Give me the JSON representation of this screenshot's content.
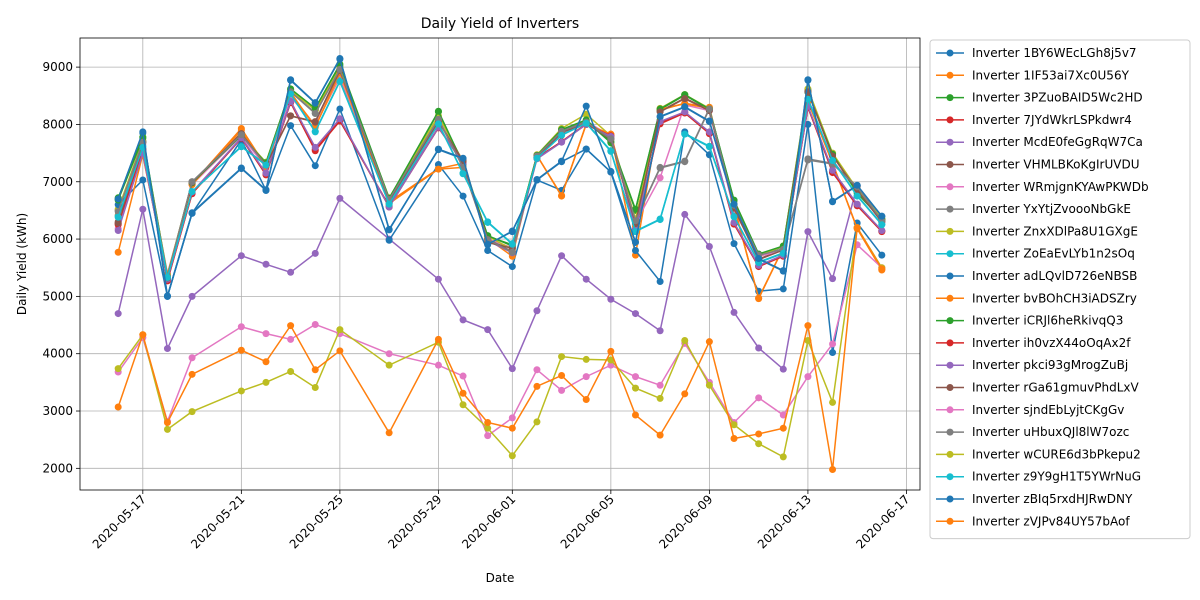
{
  "chart_data": {
    "type": "line",
    "title": "Daily Yield of Inverters",
    "x_label": "Date",
    "y_label": "Daily Yield (kWh)",
    "x": [
      "2020-05-16",
      "2020-05-17",
      "2020-05-18",
      "2020-05-19",
      "2020-05-21",
      "2020-05-22",
      "2020-05-23",
      "2020-05-24",
      "2020-05-25",
      "2020-05-27",
      "2020-05-29",
      "2020-05-30",
      "2020-05-31",
      "2020-06-01",
      "2020-06-02",
      "2020-06-03",
      "2020-06-04",
      "2020-06-05",
      "2020-06-06",
      "2020-06-07",
      "2020-06-08",
      "2020-06-09",
      "2020-06-10",
      "2020-06-11",
      "2020-06-12",
      "2020-06-13",
      "2020-06-14",
      "2020-06-15",
      "2020-06-16"
    ],
    "xlim": [
      "2020-05-14T10:48Z",
      "2020-06-17T13:12Z"
    ],
    "xticks": [
      "2020-05-17",
      "2020-05-21",
      "2020-05-25",
      "2020-05-29",
      "2020-06-01",
      "2020-06-05",
      "2020-06-09",
      "2020-06-13",
      "2020-06-17"
    ],
    "ylim": [
      1622,
      9508
    ],
    "yticks": [
      2000,
      3000,
      4000,
      5000,
      6000,
      7000,
      8000,
      9000
    ],
    "grid": true,
    "legend": "outside",
    "series": [
      {
        "name": "Inverter 1BY6WEcLGh8j5v7",
        "color": "#1f77b4",
        "values": [
          6700,
          7850,
          5000,
          6450,
          7230,
          6850,
          8780,
          8380,
          9150,
          6170,
          7560,
          7400,
          5900,
          6140,
          7030,
          7350,
          7570,
          7170,
          5940,
          8130,
          8300,
          8050,
          6600,
          5650,
          5440,
          8780,
          6650,
          6930,
          6390
        ]
      },
      {
        "name": "Inverter 1IF53ai7Xc0U56Y",
        "color": "#ff7f0e",
        "values": [
          6420,
          7460,
          5370,
          6960,
          7930,
          7270,
          8530,
          7980,
          8830,
          6650,
          7230,
          7320,
          6010,
          5770,
          7460,
          6750,
          8010,
          7830,
          5720,
          8250,
          8370,
          8300,
          6570,
          4960,
          5850,
          8400,
          7320,
          6190,
          5470
        ]
      },
      {
        "name": "Inverter 3PZuoBAID5Wc2HD",
        "color": "#2ca02c",
        "values": [
          6720,
          7780,
          5350,
          6970,
          7800,
          7340,
          8600,
          8250,
          9020,
          6700,
          8220,
          7300,
          6050,
          5900,
          7450,
          7900,
          8060,
          7680,
          6500,
          8260,
          8510,
          8260,
          6670,
          5720,
          5870,
          8600,
          7490,
          6820,
          6350
        ]
      },
      {
        "name": "Inverter 7JYdWkrLSPkdwr4",
        "color": "#d62728",
        "values": [
          6270,
          7560,
          5270,
          6800,
          7760,
          7140,
          8410,
          7560,
          8070,
          6560,
          7940,
          7330,
          6000,
          5780,
          7420,
          7700,
          8010,
          7800,
          6170,
          8030,
          8210,
          7860,
          6270,
          5530,
          5710,
          8300,
          7180,
          6600,
          6140
        ]
      },
      {
        "name": "Inverter McdE0feGgRqW7Ca",
        "color": "#9467bd",
        "values": [
          4700,
          6520,
          4090,
          5000,
          5710,
          5560,
          5420,
          5750,
          6710,
          6000,
          5300,
          4590,
          4420,
          3740,
          4750,
          5710,
          5300,
          4950,
          4700,
          4400,
          6430,
          5870,
          4720,
          4100,
          3730,
          6130,
          5310,
          6930,
          6300
        ]
      },
      {
        "name": "Inverter VHMLBKoKgIrUVDU",
        "color": "#8c564b",
        "values": [
          6300,
          7700,
          5330,
          6990,
          7850,
          7300,
          8150,
          8050,
          8950,
          6680,
          8060,
          7370,
          5950,
          5850,
          7430,
          7870,
          8030,
          7750,
          6280,
          8230,
          8460,
          8250,
          6550,
          5650,
          5820,
          8580,
          7460,
          6860,
          6310
        ]
      },
      {
        "name": "Inverter WRmjgnKYAwPKWDb",
        "color": "#e377c2",
        "values": [
          6180,
          7650,
          5400,
          6950,
          7800,
          7250,
          8480,
          7980,
          8850,
          6650,
          8080,
          7250,
          6000,
          5850,
          7440,
          7850,
          8060,
          7790,
          6280,
          7070,
          8340,
          8240,
          6500,
          5700,
          5800,
          8450,
          7370,
          6850,
          6300
        ]
      },
      {
        "name": "Inverter YxYtjZvoooNbGkE",
        "color": "#7f7f7f",
        "values": [
          6500,
          7700,
          5360,
          7000,
          7830,
          7300,
          8580,
          8200,
          8970,
          6700,
          8100,
          7260,
          6000,
          5780,
          7460,
          7890,
          8050,
          7760,
          6330,
          7250,
          7360,
          8280,
          6600,
          5730,
          5830,
          7400,
          7320,
          6920,
          6330
        ]
      },
      {
        "name": "Inverter ZnxXDlPa8U1GXgE",
        "color": "#bcbd22",
        "values": [
          6520,
          7720,
          5380,
          6980,
          7830,
          7330,
          8600,
          8250,
          8980,
          6720,
          8150,
          7350,
          6050,
          5820,
          7470,
          7930,
          8180,
          7800,
          6350,
          8280,
          8520,
          8280,
          6620,
          5710,
          5880,
          8620,
          7500,
          6870,
          6360
        ]
      },
      {
        "name": "Inverter ZoEaEvLYb1n2sOq",
        "color": "#17becf",
        "values": [
          6400,
          7620,
          5340,
          6820,
          7620,
          7300,
          8540,
          7880,
          8760,
          6620,
          8020,
          7150,
          6300,
          5920,
          7420,
          7820,
          8030,
          7540,
          6140,
          6350,
          7840,
          7620,
          6400,
          5600,
          5760,
          8450,
          7380,
          6760,
          6260
        ]
      },
      {
        "name": "Inverter adLQvlD726eNBSB",
        "color": "#1f77b4",
        "values": [
          6600,
          7030,
          5000,
          6450,
          7730,
          6850,
          7980,
          7280,
          8270,
          5980,
          7300,
          6750,
          5800,
          5520,
          7030,
          6850,
          7570,
          7170,
          5800,
          5260,
          7870,
          7470,
          5920,
          5090,
          5130,
          8000,
          4020,
          6280,
          5720
        ]
      },
      {
        "name": "Inverter bvBOhCH3iADSZry",
        "color": "#ff7f0e",
        "values": [
          5770,
          7480,
          5350,
          6950,
          7900,
          7250,
          8560,
          7950,
          8900,
          6620,
          7220,
          7250,
          6010,
          5700,
          7460,
          6760,
          8000,
          7830,
          6220,
          8270,
          8360,
          8280,
          6580,
          4970,
          5850,
          8420,
          7330,
          6180,
          5460
        ]
      },
      {
        "name": "Inverter iCRJl6heRkivqQ3",
        "color": "#2ca02c",
        "values": [
          6680,
          7760,
          5340,
          6980,
          7810,
          7320,
          8620,
          8280,
          9050,
          6710,
          8230,
          7320,
          6060,
          5880,
          7460,
          7910,
          8080,
          7700,
          6520,
          8270,
          8520,
          8270,
          6680,
          5740,
          5880,
          8560,
          7480,
          6800,
          6340
        ]
      },
      {
        "name": "Inverter ih0vzX44oOqAx2f",
        "color": "#d62728",
        "values": [
          6250,
          7580,
          5280,
          6790,
          7760,
          7120,
          8380,
          7540,
          8060,
          6580,
          7950,
          7330,
          5990,
          5770,
          7410,
          7700,
          8000,
          7800,
          6160,
          8010,
          8200,
          7840,
          6260,
          5520,
          5700,
          8300,
          7160,
          6580,
          6130
        ]
      },
      {
        "name": "Inverter pkci93gMrogZuBj",
        "color": "#9467bd",
        "values": [
          6150,
          7500,
          5300,
          6820,
          7770,
          7150,
          8400,
          7600,
          8100,
          6560,
          7950,
          7320,
          5970,
          5760,
          7400,
          7690,
          8000,
          7790,
          6170,
          8050,
          8220,
          7870,
          6290,
          5540,
          5720,
          8320,
          7200,
          6610,
          6150
        ]
      },
      {
        "name": "Inverter rGa61gmuvPhdLxV",
        "color": "#8c564b",
        "values": [
          6280,
          7680,
          5320,
          6990,
          7840,
          7290,
          8150,
          8040,
          8940,
          6670,
          8050,
          7360,
          5940,
          5840,
          7420,
          7860,
          8020,
          7740,
          6270,
          8220,
          8450,
          8240,
          6540,
          5640,
          5810,
          8570,
          7450,
          6850,
          6300
        ]
      },
      {
        "name": "Inverter sjndEbLyjtCKgGv",
        "color": "#e377c2",
        "values": [
          3680,
          4280,
          2820,
          3930,
          4470,
          4350,
          4250,
          4510,
          4350,
          4000,
          3800,
          3610,
          2570,
          2880,
          3720,
          3360,
          3600,
          3800,
          3600,
          3450,
          4180,
          3500,
          2800,
          3230,
          2930,
          3600,
          4170,
          5900,
          5500
        ]
      },
      {
        "name": "Inverter uHbuxQJl8lW7ozc",
        "color": "#7f7f7f",
        "values": [
          6480,
          7690,
          5350,
          7000,
          7820,
          7290,
          8570,
          8190,
          8960,
          6690,
          8090,
          7250,
          5990,
          5770,
          7450,
          7880,
          8040,
          7750,
          6320,
          7240,
          7350,
          8270,
          6590,
          5720,
          5820,
          7380,
          7310,
          6910,
          6320
        ]
      },
      {
        "name": "Inverter wCURE6d3bPkepu2",
        "color": "#bcbd22",
        "values": [
          3740,
          4330,
          2680,
          2990,
          3350,
          3500,
          3690,
          3410,
          4420,
          3800,
          4200,
          3110,
          2700,
          2220,
          2810,
          3950,
          3900,
          3890,
          3400,
          3220,
          4230,
          3450,
          2760,
          2430,
          2200,
          4230,
          3150,
          6200,
          5500
        ]
      },
      {
        "name": "Inverter z9Y9gH1T5YWrNuG",
        "color": "#17becf",
        "values": [
          6380,
          7600,
          5330,
          6830,
          7610,
          7290,
          8530,
          7870,
          8750,
          6610,
          8010,
          7140,
          6290,
          5910,
          7410,
          7810,
          8020,
          7530,
          6130,
          6340,
          7830,
          7610,
          6390,
          5590,
          5750,
          8440,
          7370,
          6750,
          6250
        ]
      },
      {
        "name": "Inverter zBIq5rxdHJRwDNY",
        "color": "#1f77b4",
        "values": [
          6700,
          7870,
          5010,
          6460,
          7240,
          6860,
          8770,
          8370,
          9140,
          6160,
          7570,
          7410,
          5910,
          6130,
          7040,
          7360,
          8320,
          7180,
          5950,
          8140,
          8310,
          8060,
          6610,
          5660,
          5450,
          8770,
          6660,
          6940,
          6400
        ]
      },
      {
        "name": "Inverter zVJPv84UY57bAof",
        "color": "#ff7f0e",
        "values": [
          3070,
          4330,
          2800,
          3640,
          4060,
          3860,
          4490,
          3720,
          4050,
          2620,
          4250,
          3310,
          2800,
          2700,
          3430,
          3620,
          3200,
          4040,
          2930,
          2580,
          3300,
          4210,
          2520,
          2600,
          2700,
          4490,
          1980,
          6200,
          5480
        ]
      }
    ]
  }
}
